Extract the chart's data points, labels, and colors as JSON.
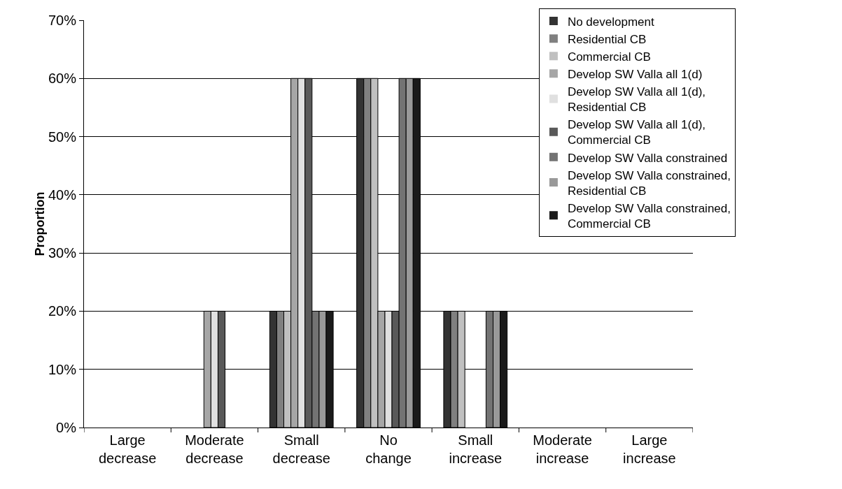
{
  "chart_data": {
    "type": "bar",
    "ylabel": "Proportion",
    "categories": [
      "Large decrease",
      "Moderate decrease",
      "Small decrease",
      "No change",
      "Small increase",
      "Moderate increase",
      "Large increase"
    ],
    "series": [
      {
        "name": "No development",
        "color": "#333333",
        "values": [
          0,
          0,
          20,
          60,
          20,
          0,
          0
        ]
      },
      {
        "name": "Residential CB",
        "color": "#808080",
        "values": [
          0,
          0,
          20,
          60,
          20,
          0,
          0
        ]
      },
      {
        "name": "Commercial CB",
        "color": "#c0c0c0",
        "values": [
          0,
          0,
          20,
          60,
          20,
          0,
          0
        ]
      },
      {
        "name": "Develop SW Valla all 1(d)",
        "color": "#a6a6a6",
        "values": [
          0,
          20,
          60,
          20,
          0,
          0,
          0
        ]
      },
      {
        "name": "Develop SW Valla all 1(d), Residential CB",
        "color": "#e0e0e0",
        "values": [
          0,
          20,
          60,
          20,
          0,
          0,
          0
        ]
      },
      {
        "name": "Develop SW Valla all 1(d), Commercial CB",
        "color": "#595959",
        "values": [
          0,
          20,
          60,
          20,
          0,
          0,
          0
        ]
      },
      {
        "name": "Develop SW Valla constrained",
        "color": "#737373",
        "values": [
          0,
          0,
          20,
          60,
          20,
          0,
          0
        ]
      },
      {
        "name": "Develop SW Valla constrained, Residential CB",
        "color": "#999999",
        "values": [
          0,
          0,
          20,
          60,
          20,
          0,
          0
        ]
      },
      {
        "name": "Develop SW Valla constrained, Commercial CB",
        "color": "#1a1a1a",
        "values": [
          0,
          0,
          20,
          60,
          20,
          0,
          0
        ]
      }
    ],
    "ylim": [
      0,
      70
    ],
    "yticks": [
      {
        "value": 0,
        "label": "0%"
      },
      {
        "value": 10,
        "label": "10%"
      },
      {
        "value": 20,
        "label": "20%"
      },
      {
        "value": 30,
        "label": "30%"
      },
      {
        "value": 40,
        "label": "40%"
      },
      {
        "value": 50,
        "label": "50%"
      },
      {
        "value": 60,
        "label": "60%"
      },
      {
        "value": 70,
        "label": "70%"
      }
    ],
    "grid": "y",
    "legend": "right"
  }
}
